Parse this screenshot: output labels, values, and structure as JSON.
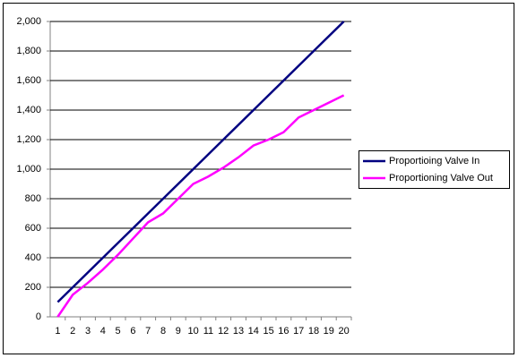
{
  "chart_data": {
    "type": "line",
    "categories": [
      1,
      2,
      3,
      4,
      5,
      6,
      7,
      8,
      9,
      10,
      11,
      12,
      13,
      14,
      15,
      16,
      17,
      18,
      19,
      20
    ],
    "series": [
      {
        "name": "Proportioing Valve In",
        "color": "#000080",
        "values": [
          100,
          200,
          300,
          400,
          500,
          600,
          700,
          800,
          900,
          1000,
          1100,
          1200,
          1300,
          1400,
          1500,
          1600,
          1700,
          1800,
          1900,
          2000
        ]
      },
      {
        "name": "Proportioning Valve Out",
        "color": "#ff00ff",
        "values": [
          0,
          150,
          230,
          320,
          420,
          530,
          640,
          700,
          800,
          900,
          950,
          1010,
          1080,
          1160,
          1200,
          1250,
          1350,
          1400,
          1450,
          1500
        ]
      }
    ],
    "ylim": [
      0,
      2000
    ],
    "yticks": [
      0,
      200,
      400,
      600,
      800,
      {
        "value": 1000,
        "label": "1,000"
      },
      {
        "value": 1200,
        "label": "1,200"
      },
      {
        "value": 1400,
        "label": "1,400"
      },
      {
        "value": 1600,
        "label": "1,600"
      },
      {
        "value": 1800,
        "label": "1,800"
      },
      {
        "value": 2000,
        "label": "2,000"
      }
    ],
    "grid": true,
    "legend": "right"
  }
}
